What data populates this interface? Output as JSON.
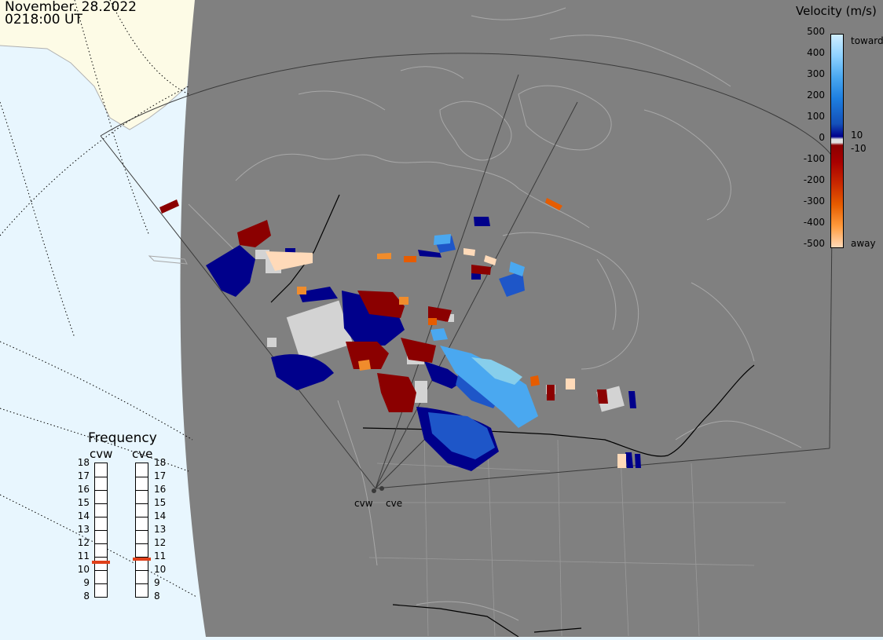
{
  "header": {
    "date": "November. 28.2022",
    "time": "0218:00 UT"
  },
  "velocity_scale": {
    "title": "Velocity (m/s)",
    "ticks": [
      "500",
      "400",
      "300",
      "200",
      "100",
      "0",
      "-100",
      "-200",
      "-300",
      "-400",
      "-500"
    ],
    "inner_ticks": [
      "10",
      "-10"
    ],
    "toward_label": "toward",
    "away_label": "away",
    "colors": {
      "toward_light": "#bfe6ff",
      "toward_mid": "#1e90ff",
      "toward_dark": "#00008b",
      "away_dark": "#8b0000",
      "away_mid": "#e65c00",
      "away_light": "#ffdab9",
      "ground_scatter": "#d3d3d3"
    }
  },
  "frequency_panel": {
    "title": "Frequency",
    "radars": [
      {
        "name": "cvw",
        "value_mhz": 10.6
      },
      {
        "name": "cve",
        "value_mhz": 10.8
      }
    ],
    "ticks": [
      "18",
      "17",
      "16",
      "15",
      "14",
      "13",
      "12",
      "11",
      "10",
      "9",
      "8"
    ]
  },
  "radar_sites": [
    {
      "name": "cvw"
    },
    {
      "name": "cve"
    }
  ],
  "map_colors": {
    "ocean": "#e8f6fe",
    "land_outside": "#fdfbe6",
    "night": "#7f7f7f",
    "coastline": "#bdbdbd",
    "border": "#000000"
  }
}
